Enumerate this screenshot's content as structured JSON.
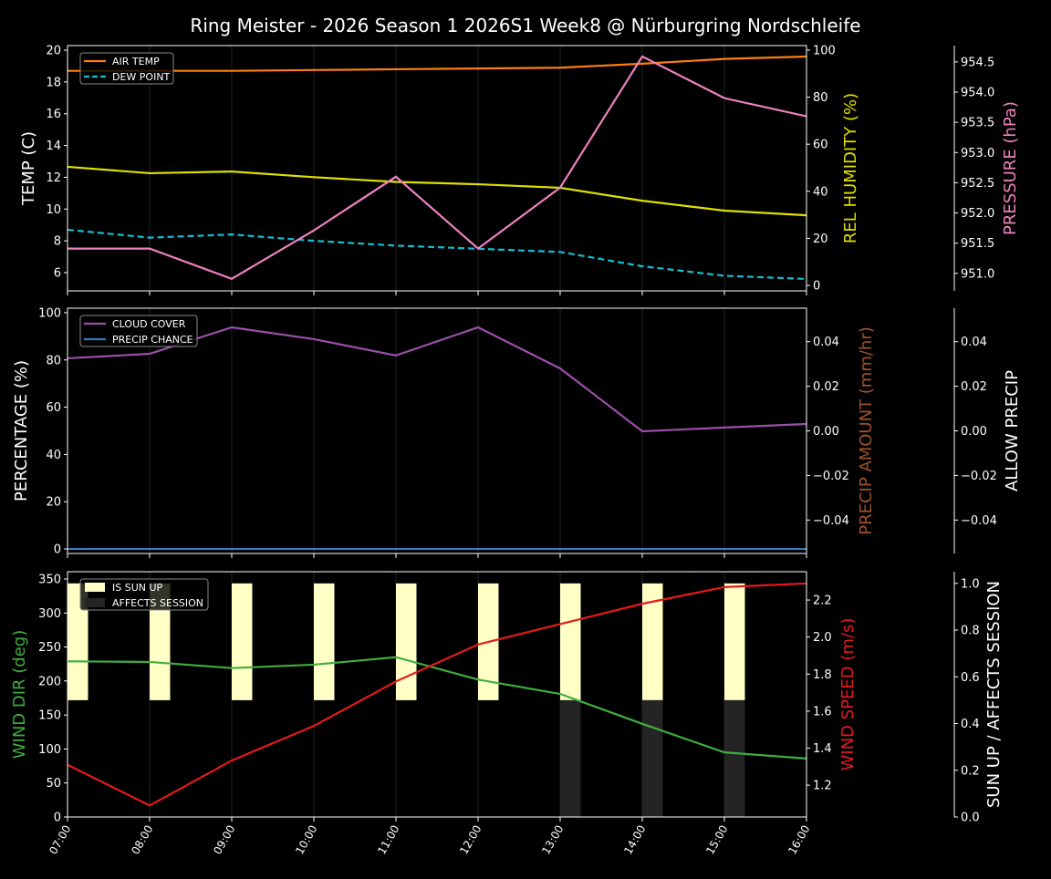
{
  "title": "Ring Meister - 2026 Season 1 2026S1 Week8 @ Nürburgring Nordschleife",
  "x_ticks": [
    "07:00",
    "08:00",
    "09:00",
    "10:00",
    "11:00",
    "12:00",
    "13:00",
    "14:00",
    "15:00",
    "16:00"
  ],
  "chart_data": [
    {
      "type": "line",
      "axes": {
        "left": {
          "label": "TEMP (C)",
          "color": "#ffffff",
          "range": [
            4.85,
            20.29
          ],
          "ticks": [
            "6",
            "8",
            "10",
            "12",
            "14",
            "16",
            "18",
            "20"
          ]
        },
        "right": {
          "label": "REL HUMIDITY (%)",
          "color": "#e0e000",
          "range": [
            -2.3,
            101.9
          ],
          "ticks": [
            "0",
            "20",
            "40",
            "60",
            "80",
            "100"
          ]
        },
        "far": {
          "label": "PRESSURE (hPa)",
          "color": "#ee82c0",
          "range": [
            950.71,
            954.77
          ],
          "ticks": [
            "951.0",
            "951.5",
            "952.0",
            "952.5",
            "953.0",
            "953.5",
            "954.0",
            "954.5"
          ]
        }
      },
      "legend": {
        "placement": "top-left",
        "entries": [
          "AIR TEMP",
          "DEW POINT"
        ]
      },
      "series": [
        {
          "name": "AIR TEMP",
          "axis": "left",
          "color": "#ff7f0e",
          "dash": false,
          "values": [
            18.7,
            18.7,
            18.7,
            18.75,
            18.8,
            18.85,
            18.9,
            19.15,
            19.45,
            19.6
          ]
        },
        {
          "name": "DEW POINT",
          "axis": "left",
          "color": "#17becf",
          "dash": true,
          "values": [
            8.7,
            8.2,
            8.4,
            8.0,
            7.7,
            7.5,
            7.3,
            6.4,
            5.8,
            5.6
          ]
        },
        {
          "axis": "right",
          "color": "#e0e000",
          "dash": false,
          "values": [
            50.4,
            47.7,
            48.4,
            46,
            44,
            43,
            41.5,
            36,
            31.8,
            29.8
          ]
        },
        {
          "axis": "far",
          "color": "#ee82c0",
          "dash": false,
          "values": [
            951.41,
            951.41,
            950.91,
            951.71,
            952.6,
            951.41,
            952.42,
            954.59,
            953.9,
            953.6
          ]
        }
      ]
    },
    {
      "type": "line",
      "axes": {
        "left": {
          "label": "PERCENTAGE (%)",
          "color": "#ffffff",
          "range": [
            -1.9,
            101.9
          ],
          "ticks": [
            "0",
            "20",
            "40",
            "60",
            "80",
            "100"
          ]
        },
        "right": {
          "label": "PRECIP AMOUNT (mm/hr)",
          "color": "#a0522d",
          "range": [
            -0.055,
            0.055
          ],
          "ticks": [
            "−0.04",
            "−0.02",
            "0.00",
            "0.02",
            "0.04"
          ]
        },
        "far": {
          "label": "ALLOW PRECIP",
          "color": "#ffffff",
          "range": [
            -0.055,
            0.055
          ],
          "ticks": [
            "−0.04",
            "−0.02",
            "0.00",
            "0.02",
            "0.04"
          ]
        }
      },
      "legend": {
        "placement": "top-left",
        "entries": [
          "CLOUD COVER",
          "PRECIP CHANCE"
        ]
      },
      "series": [
        {
          "name": "CLOUD COVER",
          "axis": "left",
          "color": "#9b4fa8",
          "dash": false,
          "values": [
            80.7,
            82.6,
            93.8,
            88.8,
            81.9,
            93.8,
            76.4,
            49.8,
            51.4,
            52.9
          ]
        },
        {
          "name": "PRECIP CHANCE",
          "axis": "left",
          "color": "#3a7bbf",
          "dash": false,
          "values": [
            0,
            0,
            0,
            0,
            0,
            0,
            0,
            0,
            0,
            0
          ]
        }
      ]
    },
    {
      "type": "line",
      "axes": {
        "left": {
          "label": "WIND DIR (deg)",
          "color": "#3fae3f",
          "range": [
            0,
            360.7
          ],
          "ticks": [
            "0",
            "50",
            "100",
            "150",
            "200",
            "250",
            "300",
            "350"
          ]
        },
        "right": {
          "label": "WIND SPEED (m/s)",
          "color": "#e31a1c",
          "range": [
            1.028,
            2.353
          ],
          "ticks": [
            "1.2",
            "1.4",
            "1.6",
            "1.8",
            "2.0",
            "2.2"
          ]
        },
        "far": {
          "label": "SUN UP / AFFECTS SESSION",
          "color": "#ffffff",
          "range": [
            0,
            1.05
          ],
          "ticks": [
            "0.0",
            "0.2",
            "0.4",
            "0.6",
            "0.8",
            "1.0"
          ]
        }
      },
      "legend": {
        "placement": "top-left",
        "entries": [
          "IS SUN UP",
          "AFFECTS SESSION"
        ]
      },
      "bars": [
        {
          "name": "IS SUN UP",
          "axis": "far",
          "color": "#ffffc6",
          "bottom": 0.5,
          "height": 0.5,
          "values": [
            1,
            1,
            1,
            1,
            1,
            1,
            1,
            1,
            1,
            0
          ]
        },
        {
          "name": "AFFECTS SESSION",
          "axis": "far",
          "color": "#242424",
          "bottom": 0,
          "height": 0.5,
          "values": [
            0,
            0,
            0,
            0,
            0,
            0,
            1,
            1,
            1,
            0
          ]
        }
      ],
      "series": [
        {
          "axis": "left",
          "color": "#3fae3f",
          "dash": false,
          "values": [
            229,
            228,
            219,
            224,
            235,
            202,
            181,
            137,
            95,
            86
          ]
        },
        {
          "axis": "right",
          "color": "#e31a1c",
          "dash": false,
          "values": [
            1.31,
            1.09,
            1.333,
            1.52,
            1.76,
            1.96,
            2.07,
            2.18,
            2.27,
            2.29
          ]
        }
      ]
    }
  ]
}
